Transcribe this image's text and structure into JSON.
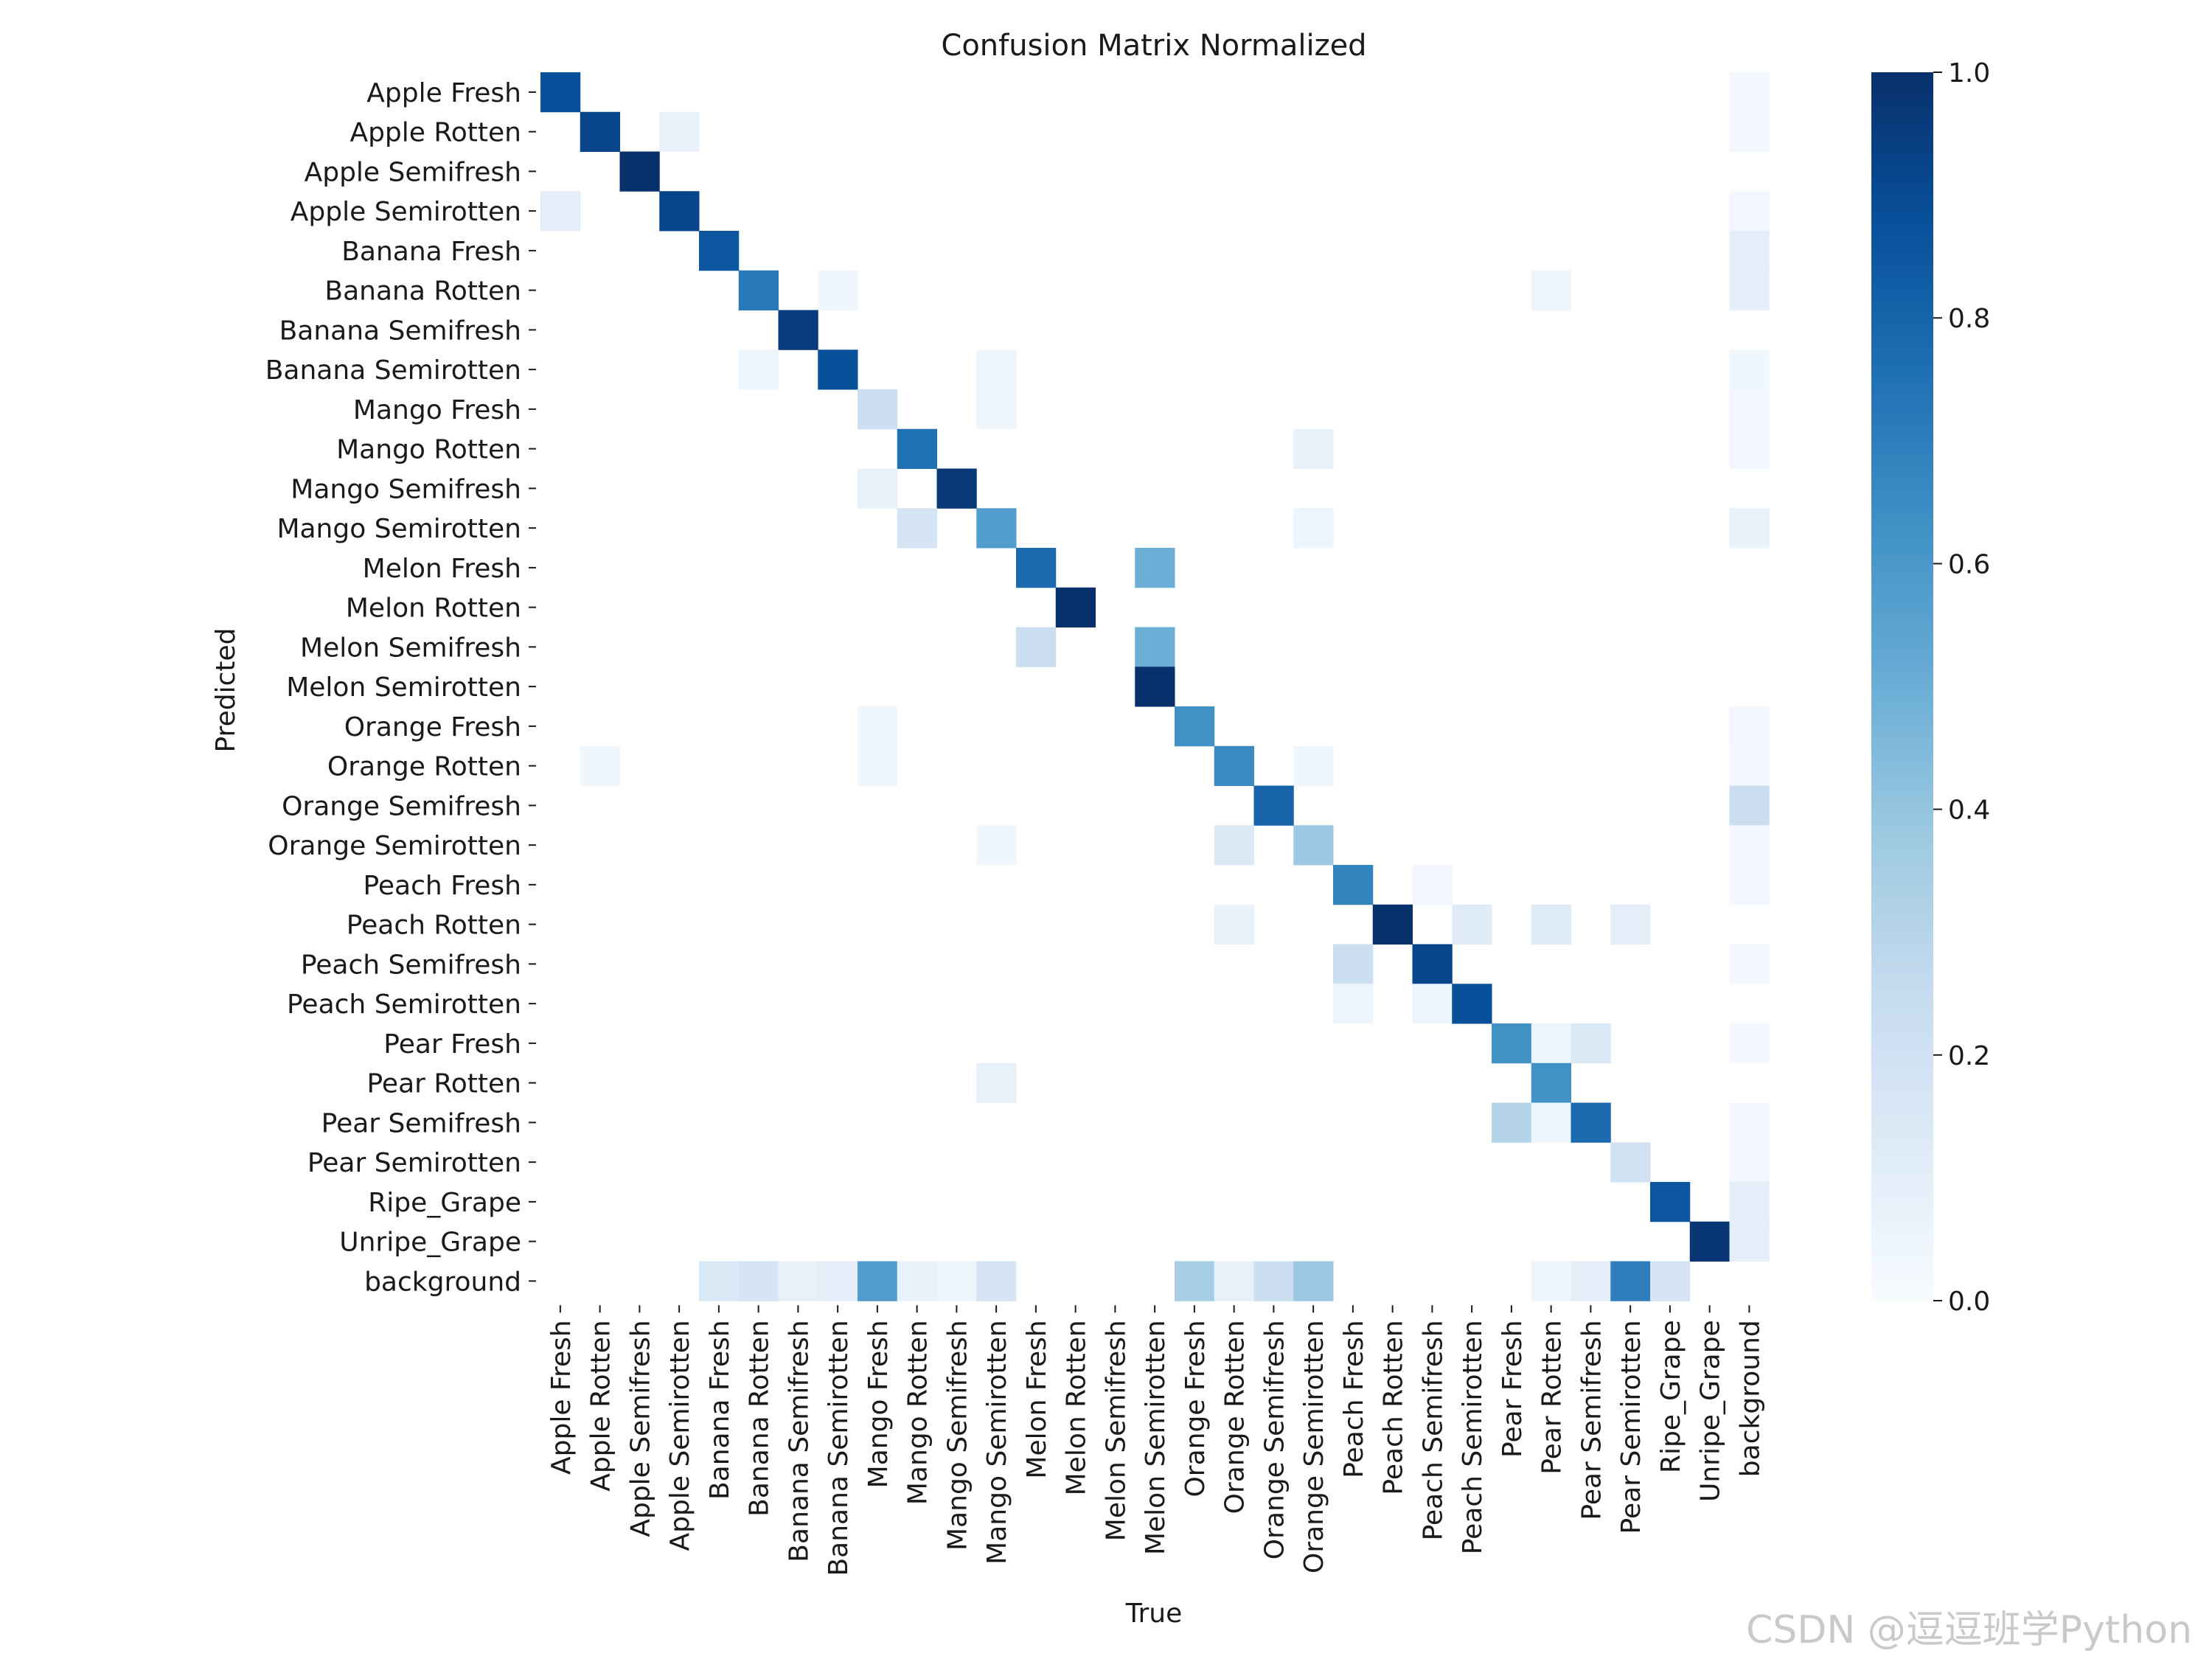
{
  "watermark": "CSDN @逗逗班学Python",
  "chart_data": {
    "type": "heatmap",
    "title": "Confusion Matrix Normalized",
    "xlabel": "True",
    "ylabel": "Predicted",
    "colormap": "Blues",
    "colors": {
      "low": "#f7fbff",
      "high": "#08306b"
    },
    "vmin": 0.0,
    "vmax": 1.0,
    "colorbar_ticks": [
      0.0,
      0.2,
      0.4,
      0.6,
      0.8,
      1.0
    ],
    "colorbar_tick_labels": [
      "0.0",
      "0.2",
      "0.4",
      "0.6",
      "0.8",
      "1.0"
    ],
    "labels": [
      "Apple Fresh",
      "Apple Rotten",
      "Apple Semifresh",
      "Apple Semirotten",
      "Banana Fresh",
      "Banana Rotten",
      "Banana Semifresh",
      "Banana Semirotten",
      "Mango Fresh",
      "Mango Rotten",
      "Mango Semifresh",
      "Mango Semirotten",
      "Melon Fresh",
      "Melon Rotten",
      "Melon Semifresh",
      "Melon Semirotten",
      "Orange Fresh",
      "Orange Rotten",
      "Orange Semifresh",
      "Orange Semirotten",
      "Peach Fresh",
      "Peach Rotten",
      "Peach Semifresh",
      "Peach Semirotten",
      "Pear Fresh",
      "Pear Rotten",
      "Pear Semifresh",
      "Pear Semirotten",
      "Ripe_Grape",
      "Unripe_Grape",
      "background"
    ],
    "cells": [
      {
        "row": "Apple Fresh",
        "col": "Apple Fresh",
        "value": 0.88
      },
      {
        "row": "Apple Fresh",
        "col": "background",
        "value": 0.02
      },
      {
        "row": "Apple Rotten",
        "col": "Apple Rotten",
        "value": 0.92
      },
      {
        "row": "Apple Rotten",
        "col": "Apple Semirotten",
        "value": 0.07
      },
      {
        "row": "Apple Rotten",
        "col": "background",
        "value": 0.02
      },
      {
        "row": "Apple Semifresh",
        "col": "Apple Semifresh",
        "value": 1.0
      },
      {
        "row": "Apple Semirotten",
        "col": "Apple Fresh",
        "value": 0.1
      },
      {
        "row": "Apple Semirotten",
        "col": "Apple Semirotten",
        "value": 0.92
      },
      {
        "row": "Apple Semirotten",
        "col": "background",
        "value": 0.03
      },
      {
        "row": "Banana Fresh",
        "col": "Banana Fresh",
        "value": 0.85
      },
      {
        "row": "Banana Fresh",
        "col": "background",
        "value": 0.1
      },
      {
        "row": "Banana Rotten",
        "col": "Banana Rotten",
        "value": 0.72
      },
      {
        "row": "Banana Rotten",
        "col": "Banana Semirotten",
        "value": 0.04
      },
      {
        "row": "Banana Rotten",
        "col": "Pear Rotten",
        "value": 0.05
      },
      {
        "row": "Banana Rotten",
        "col": "background",
        "value": 0.09
      },
      {
        "row": "Banana Semifresh",
        "col": "Banana Semifresh",
        "value": 0.96
      },
      {
        "row": "Banana Semirotten",
        "col": "Banana Rotten",
        "value": 0.05
      },
      {
        "row": "Banana Semirotten",
        "col": "Banana Semirotten",
        "value": 0.88
      },
      {
        "row": "Banana Semirotten",
        "col": "Mango Semirotten",
        "value": 0.05
      },
      {
        "row": "Banana Semirotten",
        "col": "background",
        "value": 0.04
      },
      {
        "row": "Mango Fresh",
        "col": "Mango Fresh",
        "value": 0.22
      },
      {
        "row": "Mango Fresh",
        "col": "Mango Semirotten",
        "value": 0.05
      },
      {
        "row": "Mango Fresh",
        "col": "background",
        "value": 0.03
      },
      {
        "row": "Mango Rotten",
        "col": "Mango Rotten",
        "value": 0.75
      },
      {
        "row": "Mango Rotten",
        "col": "Orange Semirotten",
        "value": 0.08
      },
      {
        "row": "Mango Rotten",
        "col": "background",
        "value": 0.03
      },
      {
        "row": "Mango Semifresh",
        "col": "Mango Fresh",
        "value": 0.08
      },
      {
        "row": "Mango Semifresh",
        "col": "Mango Semifresh",
        "value": 0.97
      },
      {
        "row": "Mango Semirotten",
        "col": "Mango Rotten",
        "value": 0.17
      },
      {
        "row": "Mango Semirotten",
        "col": "Mango Semirotten",
        "value": 0.57
      },
      {
        "row": "Mango Semirotten",
        "col": "Orange Semirotten",
        "value": 0.05
      },
      {
        "row": "Mango Semirotten",
        "col": "background",
        "value": 0.07
      },
      {
        "row": "Melon Fresh",
        "col": "Melon Fresh",
        "value": 0.78
      },
      {
        "row": "Melon Fresh",
        "col": "Melon Semirotten",
        "value": 0.5
      },
      {
        "row": "Melon Rotten",
        "col": "Melon Rotten",
        "value": 1.0
      },
      {
        "row": "Melon Semifresh",
        "col": "Melon Fresh",
        "value": 0.22
      },
      {
        "row": "Melon Semifresh",
        "col": "Melon Semirotten",
        "value": 0.5
      },
      {
        "row": "Melon Semirotten",
        "col": "Melon Semirotten",
        "value": 1.0
      },
      {
        "row": "Orange Fresh",
        "col": "Mango Fresh",
        "value": 0.04
      },
      {
        "row": "Orange Fresh",
        "col": "Orange Fresh",
        "value": 0.63
      },
      {
        "row": "Orange Fresh",
        "col": "background",
        "value": 0.03
      },
      {
        "row": "Orange Rotten",
        "col": "Apple Rotten",
        "value": 0.04
      },
      {
        "row": "Orange Rotten",
        "col": "Mango Fresh",
        "value": 0.04
      },
      {
        "row": "Orange Rotten",
        "col": "Orange Rotten",
        "value": 0.65
      },
      {
        "row": "Orange Rotten",
        "col": "Orange Semirotten",
        "value": 0.04
      },
      {
        "row": "Orange Rotten",
        "col": "background",
        "value": 0.02
      },
      {
        "row": "Orange Semifresh",
        "col": "Orange Semifresh",
        "value": 0.8
      },
      {
        "row": "Orange Semifresh",
        "col": "background",
        "value": 0.23
      },
      {
        "row": "Orange Semirotten",
        "col": "Mango Semirotten",
        "value": 0.04
      },
      {
        "row": "Orange Semirotten",
        "col": "Orange Rotten",
        "value": 0.14
      },
      {
        "row": "Orange Semirotten",
        "col": "Orange Semirotten",
        "value": 0.38
      },
      {
        "row": "Orange Semirotten",
        "col": "background",
        "value": 0.02
      },
      {
        "row": "Peach Fresh",
        "col": "Peach Fresh",
        "value": 0.68
      },
      {
        "row": "Peach Fresh",
        "col": "Peach Semifresh",
        "value": 0.03
      },
      {
        "row": "Peach Fresh",
        "col": "background",
        "value": 0.02
      },
      {
        "row": "Peach Rotten",
        "col": "Orange Rotten",
        "value": 0.07
      },
      {
        "row": "Peach Rotten",
        "col": "Peach Rotten",
        "value": 1.0
      },
      {
        "row": "Peach Rotten",
        "col": "Peach Semirotten",
        "value": 0.12
      },
      {
        "row": "Peach Rotten",
        "col": "Pear Rotten",
        "value": 0.12
      },
      {
        "row": "Peach Rotten",
        "col": "Pear Semirotten",
        "value": 0.1
      },
      {
        "row": "Peach Semifresh",
        "col": "Peach Fresh",
        "value": 0.22
      },
      {
        "row": "Peach Semifresh",
        "col": "Peach Semifresh",
        "value": 0.92
      },
      {
        "row": "Peach Semifresh",
        "col": "background",
        "value": 0.02
      },
      {
        "row": "Peach Semirotten",
        "col": "Peach Fresh",
        "value": 0.05
      },
      {
        "row": "Peach Semirotten",
        "col": "Peach Semifresh",
        "value": 0.05
      },
      {
        "row": "Peach Semirotten",
        "col": "Peach Semirotten",
        "value": 0.88
      },
      {
        "row": "Pear Fresh",
        "col": "Pear Fresh",
        "value": 0.63
      },
      {
        "row": "Pear Fresh",
        "col": "Pear Rotten",
        "value": 0.05
      },
      {
        "row": "Pear Fresh",
        "col": "Pear Semifresh",
        "value": 0.15
      },
      {
        "row": "Pear Fresh",
        "col": "background",
        "value": 0.02
      },
      {
        "row": "Pear Rotten",
        "col": "Mango Semirotten",
        "value": 0.08
      },
      {
        "row": "Pear Rotten",
        "col": "Pear Rotten",
        "value": 0.63
      },
      {
        "row": "Pear Semifresh",
        "col": "Pear Fresh",
        "value": 0.3
      },
      {
        "row": "Pear Semifresh",
        "col": "Pear Rotten",
        "value": 0.05
      },
      {
        "row": "Pear Semifresh",
        "col": "Pear Semifresh",
        "value": 0.78
      },
      {
        "row": "Pear Semifresh",
        "col": "background",
        "value": 0.02
      },
      {
        "row": "Pear Semirotten",
        "col": "Pear Semirotten",
        "value": 0.2
      },
      {
        "row": "Pear Semirotten",
        "col": "background",
        "value": 0.02
      },
      {
        "row": "Ripe_Grape",
        "col": "Ripe_Grape",
        "value": 0.85
      },
      {
        "row": "Ripe_Grape",
        "col": "background",
        "value": 0.1
      },
      {
        "row": "Unripe_Grape",
        "col": "Unripe_Grape",
        "value": 0.98
      },
      {
        "row": "Unripe_Grape",
        "col": "background",
        "value": 0.1
      },
      {
        "row": "background",
        "col": "Banana Fresh",
        "value": 0.15
      },
      {
        "row": "background",
        "col": "Banana Rotten",
        "value": 0.17
      },
      {
        "row": "background",
        "col": "Banana Semifresh",
        "value": 0.08
      },
      {
        "row": "background",
        "col": "Banana Semirotten",
        "value": 0.1
      },
      {
        "row": "background",
        "col": "Mango Fresh",
        "value": 0.58
      },
      {
        "row": "background",
        "col": "Mango Rotten",
        "value": 0.07
      },
      {
        "row": "background",
        "col": "Mango Semifresh",
        "value": 0.05
      },
      {
        "row": "background",
        "col": "Mango Semirotten",
        "value": 0.17
      },
      {
        "row": "background",
        "col": "Orange Fresh",
        "value": 0.35
      },
      {
        "row": "background",
        "col": "Orange Rotten",
        "value": 0.08
      },
      {
        "row": "background",
        "col": "Orange Semifresh",
        "value": 0.22
      },
      {
        "row": "background",
        "col": "Orange Semirotten",
        "value": 0.38
      },
      {
        "row": "background",
        "col": "Pear Rotten",
        "value": 0.05
      },
      {
        "row": "background",
        "col": "Pear Semifresh",
        "value": 0.1
      },
      {
        "row": "background",
        "col": "Pear Semirotten",
        "value": 0.7
      },
      {
        "row": "background",
        "col": "Ripe_Grape",
        "value": 0.17
      }
    ]
  }
}
